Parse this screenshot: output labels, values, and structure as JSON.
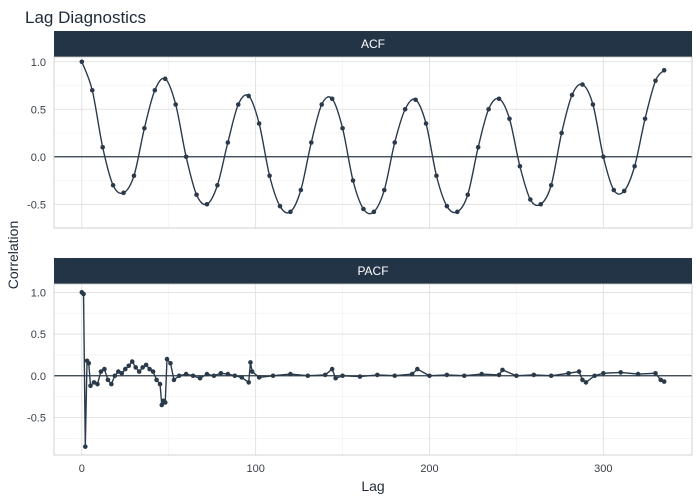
{
  "chart_data": {
    "type": "line",
    "title": "Lag Diagnostics",
    "xlabel": "Lag",
    "ylabel": "Correlation",
    "xlim": [
      0,
      335
    ],
    "x_ticks": [
      0,
      100,
      200,
      300
    ],
    "y_ticks": [
      -0.5,
      0.0,
      0.5,
      1.0
    ],
    "grid": true,
    "series_color": "#2b3a4a",
    "strip_color": "#243447",
    "panels": [
      {
        "name": "ACF",
        "ylim": [
          -0.75,
          1.05
        ],
        "x": [
          0,
          6,
          12,
          18,
          24,
          30,
          36,
          42,
          48,
          54,
          60,
          66,
          72,
          78,
          84,
          90,
          96,
          102,
          108,
          114,
          120,
          126,
          132,
          138,
          144,
          150,
          156,
          162,
          168,
          174,
          180,
          186,
          192,
          198,
          204,
          210,
          216,
          222,
          228,
          234,
          240,
          246,
          252,
          258,
          264,
          270,
          276,
          282,
          288,
          294,
          300,
          306,
          312,
          318,
          324,
          330,
          335
        ],
        "values": [
          1.0,
          0.7,
          0.1,
          -0.3,
          -0.38,
          -0.2,
          0.3,
          0.7,
          0.82,
          0.55,
          0.0,
          -0.4,
          -0.5,
          -0.3,
          0.15,
          0.55,
          0.64,
          0.35,
          -0.2,
          -0.52,
          -0.58,
          -0.35,
          0.15,
          0.55,
          0.61,
          0.3,
          -0.25,
          -0.55,
          -0.58,
          -0.35,
          0.15,
          0.5,
          0.6,
          0.35,
          -0.2,
          -0.52,
          -0.58,
          -0.4,
          0.1,
          0.5,
          0.61,
          0.4,
          -0.1,
          -0.45,
          -0.5,
          -0.3,
          0.25,
          0.65,
          0.76,
          0.55,
          0.0,
          -0.35,
          -0.36,
          -0.1,
          0.4,
          0.8,
          0.91
        ]
      },
      {
        "name": "PACF",
        "ylim": [
          -0.95,
          1.1
        ],
        "x": [
          0,
          1,
          2,
          3,
          4,
          5,
          7,
          9,
          11,
          13,
          15,
          17,
          19,
          21,
          23,
          25,
          27,
          29,
          31,
          33,
          35,
          37,
          39,
          41,
          43,
          45,
          46,
          47,
          48,
          49,
          51,
          53,
          56,
          60,
          64,
          68,
          72,
          76,
          80,
          84,
          88,
          92,
          96,
          97,
          98,
          102,
          110,
          120,
          130,
          140,
          144,
          146,
          150,
          160,
          170,
          180,
          190,
          193,
          200,
          210,
          220,
          230,
          240,
          242,
          250,
          260,
          270,
          280,
          286,
          288,
          290,
          295,
          300,
          310,
          320,
          330,
          333,
          335
        ],
        "values": [
          1.0,
          0.98,
          -0.85,
          0.18,
          0.15,
          -0.12,
          -0.08,
          -0.1,
          0.05,
          0.08,
          -0.05,
          -0.1,
          0.0,
          0.05,
          0.03,
          0.08,
          0.12,
          0.17,
          0.1,
          0.05,
          0.1,
          0.13,
          0.08,
          0.05,
          -0.05,
          -0.1,
          -0.35,
          -0.3,
          -0.32,
          0.2,
          0.15,
          -0.05,
          0.0,
          0.02,
          0.0,
          -0.03,
          0.02,
          0.0,
          0.03,
          0.02,
          0.0,
          -0.02,
          -0.08,
          0.16,
          0.05,
          -0.02,
          0.0,
          0.02,
          0.0,
          0.01,
          0.08,
          -0.03,
          0.0,
          -0.01,
          0.01,
          0.0,
          0.02,
          0.08,
          0.0,
          0.01,
          0.0,
          0.02,
          0.01,
          0.07,
          0.0,
          0.01,
          0.0,
          0.03,
          0.05,
          -0.05,
          -0.08,
          0.0,
          0.03,
          0.04,
          0.02,
          0.03,
          -0.05,
          -0.07
        ]
      }
    ]
  }
}
